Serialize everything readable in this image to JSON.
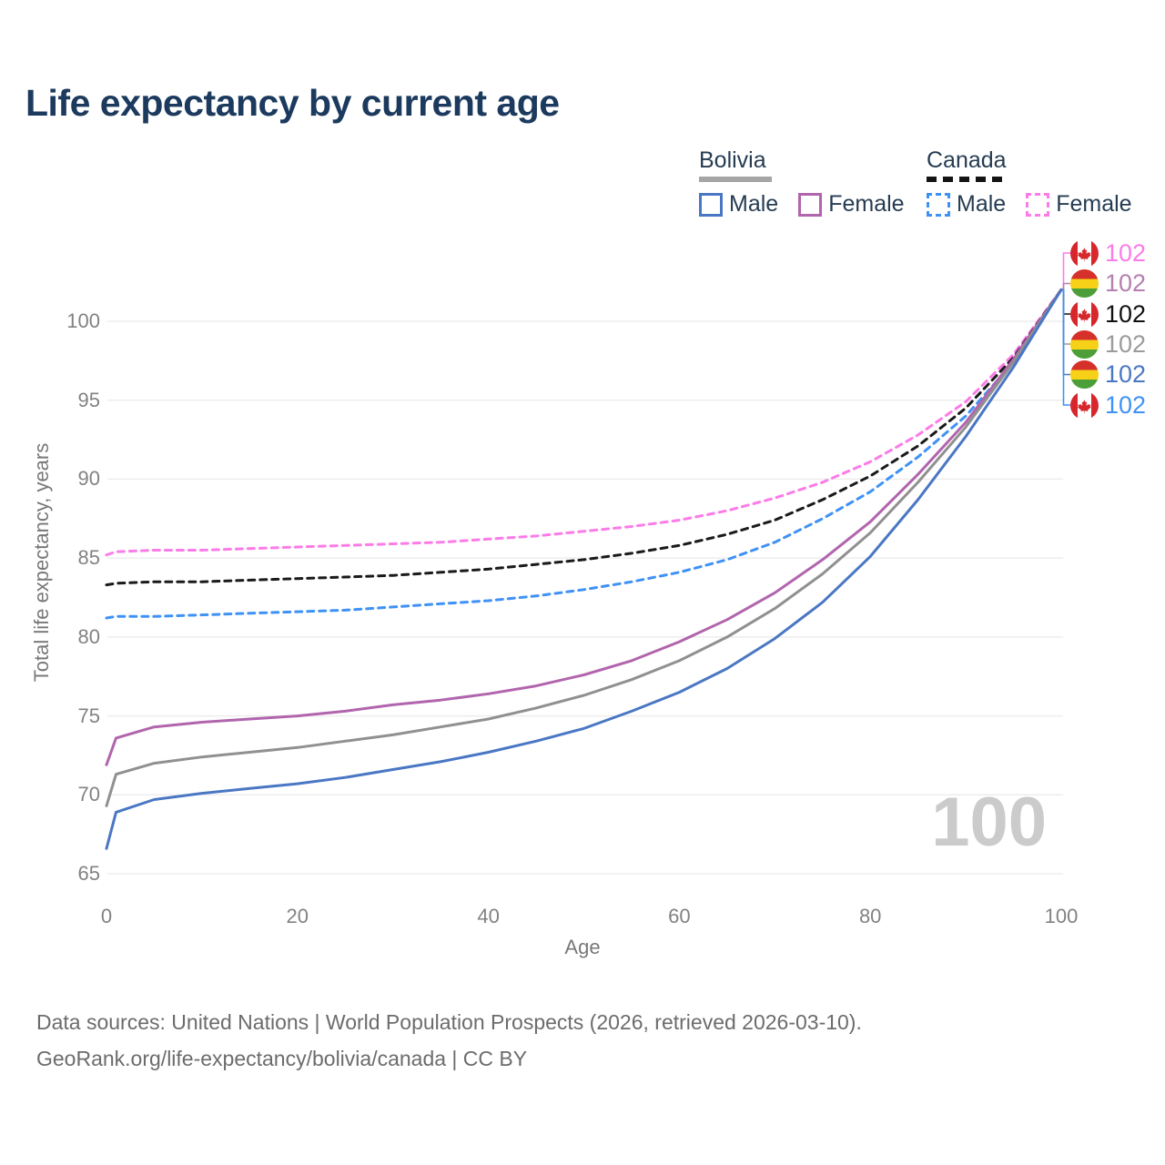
{
  "title": "Life expectancy by current age",
  "legend": {
    "groups": [
      {
        "label": "Bolivia",
        "line_style": "solid",
        "underline_color": "#a5a5a5",
        "items": [
          {
            "label": "Male",
            "color": "#4a77c4",
            "dash": false
          },
          {
            "label": "Female",
            "color": "#b165ad",
            "dash": false
          }
        ]
      },
      {
        "label": "Canada",
        "line_style": "dashed",
        "underline_color": "#141414",
        "items": [
          {
            "label": "Male",
            "color": "#3f92f5",
            "dash": true
          },
          {
            "label": "Female",
            "color": "#fb7ce8",
            "dash": true
          }
        ]
      }
    ]
  },
  "chart_data": {
    "type": "line",
    "title": "Life expectancy by current age",
    "xlabel": "Age",
    "ylabel": "Total life expectancy, years",
    "xlim": [
      0,
      100
    ],
    "ylim": [
      65,
      102
    ],
    "grid": "horizontal",
    "x_ticks": [
      0,
      20,
      40,
      60,
      80,
      100
    ],
    "y_ticks": [
      65,
      70,
      75,
      80,
      85,
      90,
      95,
      100
    ],
    "x": [
      0,
      1,
      5,
      10,
      15,
      20,
      25,
      30,
      35,
      40,
      45,
      50,
      55,
      60,
      65,
      70,
      75,
      80,
      85,
      90,
      95,
      100
    ],
    "series": [
      {
        "name": "Canada Female",
        "country": "canada",
        "sex": "female",
        "color": "#fb7ce8",
        "dash": true,
        "values": [
          85.2,
          85.4,
          85.5,
          85.5,
          85.6,
          85.7,
          85.8,
          85.9,
          86.0,
          86.2,
          86.4,
          86.7,
          87.0,
          87.4,
          88.0,
          88.8,
          89.8,
          91.1,
          92.8,
          94.9,
          97.9,
          102
        ]
      },
      {
        "name": "Canada Both sexes",
        "country": "canada",
        "sex": "both",
        "color": "#1a1a1a",
        "dash": true,
        "values": [
          83.3,
          83.4,
          83.5,
          83.5,
          83.6,
          83.7,
          83.8,
          83.9,
          84.1,
          84.3,
          84.6,
          84.9,
          85.3,
          85.8,
          86.5,
          87.4,
          88.7,
          90.2,
          92.1,
          94.5,
          97.7,
          102
        ]
      },
      {
        "name": "Canada Male",
        "country": "canada",
        "sex": "male",
        "color": "#3f92f5",
        "dash": true,
        "values": [
          81.2,
          81.3,
          81.3,
          81.4,
          81.5,
          81.6,
          81.7,
          81.9,
          82.1,
          82.3,
          82.6,
          83.0,
          83.5,
          84.1,
          84.9,
          86.0,
          87.5,
          89.2,
          91.4,
          94.0,
          97.4,
          102
        ]
      },
      {
        "name": "Bolivia Female",
        "country": "bolivia",
        "sex": "female",
        "color": "#b165ad",
        "dash": false,
        "values": [
          71.9,
          73.6,
          74.3,
          74.6,
          74.8,
          75.0,
          75.3,
          75.7,
          76.0,
          76.4,
          76.9,
          77.6,
          78.5,
          79.7,
          81.1,
          82.8,
          84.9,
          87.3,
          90.3,
          93.6,
          97.6,
          102
        ]
      },
      {
        "name": "Bolivia Both sexes",
        "country": "bolivia",
        "sex": "both",
        "color": "#909090",
        "dash": false,
        "values": [
          69.3,
          71.3,
          72.0,
          72.4,
          72.7,
          73.0,
          73.4,
          73.8,
          74.3,
          74.8,
          75.5,
          76.3,
          77.3,
          78.5,
          80.0,
          81.8,
          84.0,
          86.6,
          89.8,
          93.3,
          97.4,
          102
        ]
      },
      {
        "name": "Bolivia Male",
        "country": "bolivia",
        "sex": "male",
        "color": "#4a77c4",
        "dash": false,
        "values": [
          66.6,
          68.9,
          69.7,
          70.1,
          70.4,
          70.7,
          71.1,
          71.6,
          72.1,
          72.7,
          73.4,
          74.2,
          75.3,
          76.5,
          78.0,
          79.9,
          82.2,
          85.1,
          88.7,
          92.7,
          97.1,
          102
        ]
      }
    ],
    "end_labels": [
      {
        "flag": "canada",
        "series": "Canada Female",
        "value": "102",
        "color": "#fb7ce8"
      },
      {
        "flag": "bolivia",
        "series": "Bolivia Female",
        "value": "102",
        "color": "#b57fb2"
      },
      {
        "flag": "canada",
        "series": "Canada Both sexes",
        "value": "102",
        "color": "#111111"
      },
      {
        "flag": "bolivia",
        "series": "Bolivia Both sexes",
        "value": "102",
        "color": "#9b9b9b"
      },
      {
        "flag": "bolivia",
        "series": "Bolivia Male",
        "value": "102",
        "color": "#4a77c4"
      },
      {
        "flag": "canada",
        "series": "Canada Male",
        "value": "102",
        "color": "#3f92f5"
      }
    ],
    "watermark": "100"
  },
  "colors": {
    "title": "#1c3a5e",
    "axis_text": "#828282",
    "gridline": "#ededed",
    "watermark": "#cbcbcb",
    "flag_canada_red": "#d6272c",
    "flag_bolivia_red": "#d5302a",
    "flag_bolivia_yellow": "#f7d117",
    "flag_bolivia_green": "#4c9f38"
  },
  "footer": {
    "line1": "Data sources: United Nations | World Population Prospects (2026, retrieved 2026-03-10).",
    "line2": "GeoRank.org/life-expectancy/bolivia/canada | CC BY"
  }
}
